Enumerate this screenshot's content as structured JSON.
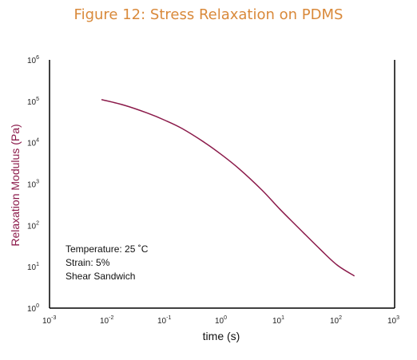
{
  "chart_data": {
    "type": "line",
    "title": "Figure 12: Stress Relaxation on PDMS",
    "xlabel": "time (s)",
    "ylabel": "Relaxation Modulus (Pa)",
    "xscale": "log",
    "yscale": "log",
    "xlim": [
      0.001,
      1000
    ],
    "ylim": [
      1,
      1000000
    ],
    "x_ticks": [
      {
        "base": "10",
        "exp": "-3"
      },
      {
        "base": "10",
        "exp": "-2"
      },
      {
        "base": "10",
        "exp": "-1"
      },
      {
        "base": "10",
        "exp": "0"
      },
      {
        "base": "10",
        "exp": "1"
      },
      {
        "base": "10",
        "exp": "2"
      },
      {
        "base": "10",
        "exp": "3"
      }
    ],
    "y_ticks": [
      {
        "base": "10",
        "exp": "0"
      },
      {
        "base": "10",
        "exp": "1"
      },
      {
        "base": "10",
        "exp": "2"
      },
      {
        "base": "10",
        "exp": "3"
      },
      {
        "base": "10",
        "exp": "4"
      },
      {
        "base": "10",
        "exp": "5"
      },
      {
        "base": "10",
        "exp": "6"
      }
    ],
    "series": [
      {
        "color": "#8b1a4a",
        "x": [
          0.008,
          0.02,
          0.05,
          0.1,
          0.2,
          0.5,
          1,
          2,
          5,
          10,
          20,
          50,
          100,
          200
        ],
        "y": [
          110000,
          80000,
          52000,
          35000,
          22000,
          10000,
          5000,
          2300,
          700,
          250,
          95,
          27,
          11,
          6
        ]
      }
    ],
    "annotations": [
      "Temperature: 25 ˚C",
      "Strain: 5%",
      "Shear Sandwich"
    ],
    "grid": false,
    "legend": "none"
  }
}
